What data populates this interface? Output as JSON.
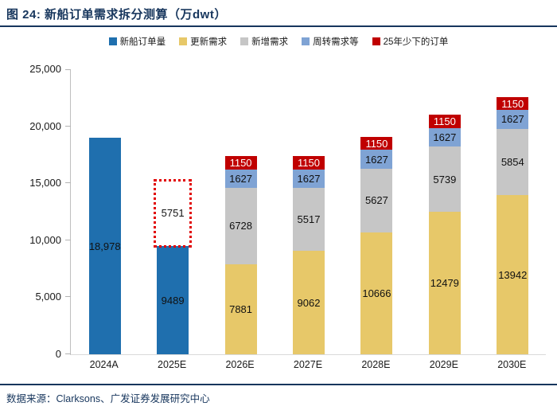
{
  "figure": {
    "title": "图 24:  新船订单需求拆分测算（万dwt）",
    "source": "数据来源：Clarksons、广发证券发展研究中心"
  },
  "colors": {
    "title_navy": "#17365D",
    "axis_gray": "#bfbfbf",
    "dashed_red": "#e10000"
  },
  "chart_data": {
    "type": "stacked-bar",
    "title": "新船订单需求拆分测算（万dwt）",
    "unit": "万dwt",
    "categories": [
      "2024A",
      "2025E",
      "2026E",
      "2027E",
      "2028E",
      "2029E",
      "2030E"
    ],
    "ylim": [
      0,
      25000
    ],
    "grid": false,
    "legend_position": "top",
    "yticks": [
      {
        "value": 0,
        "label": "0"
      },
      {
        "value": 5000,
        "label": "5,000"
      },
      {
        "value": 10000,
        "label": "10,000"
      },
      {
        "value": 15000,
        "label": "15,000"
      },
      {
        "value": 20000,
        "label": "20,000"
      },
      {
        "value": 25000,
        "label": "25,000"
      }
    ],
    "series": [
      {
        "key": "new-ship-orders",
        "name": "新船订单量",
        "color": "#1F6FAE",
        "text_color": "#111111",
        "values": [
          18978,
          9489,
          null,
          null,
          null,
          null,
          null
        ],
        "display": [
          "18,978",
          "9489",
          null,
          null,
          null,
          null,
          null
        ]
      },
      {
        "key": "replacement-demand",
        "name": "更新需求",
        "color": "#E7C869",
        "text_color": "#111111",
        "values": [
          null,
          null,
          7881,
          9062,
          10666,
          12479,
          13942
        ],
        "display": [
          null,
          null,
          "7881",
          "9062",
          "10666",
          "12479",
          "13942"
        ]
      },
      {
        "key": "incremental-demand",
        "name": "新增需求",
        "color": "#C6C6C6",
        "text_color": "#111111",
        "values": [
          null,
          null,
          6728,
          5517,
          5627,
          5739,
          5854
        ],
        "display": [
          null,
          null,
          "6728",
          "5517",
          "5627",
          "5739",
          "5854"
        ]
      },
      {
        "key": "turnover-demand",
        "name": "周转需求等",
        "color": "#7FA3D4",
        "text_color": "#111111",
        "values": [
          null,
          null,
          1627,
          1627,
          1627,
          1627,
          1627
        ],
        "display": [
          null,
          null,
          "1627",
          "1627",
          "1627",
          "1627",
          "1627"
        ]
      },
      {
        "key": "orders-deficit-25",
        "name": "25年少下的订单",
        "color": "#C00000",
        "text_color": "#ffffff",
        "values": [
          null,
          null,
          1150,
          1150,
          1150,
          1150,
          1150
        ],
        "display": [
          null,
          null,
          "1150",
          "1150",
          "1150",
          "1150",
          "1150"
        ]
      }
    ],
    "dashed_overlay": {
      "category": "2025E",
      "base": 9489,
      "value": 5751,
      "label": "5751",
      "border_color": "#e10000"
    }
  }
}
